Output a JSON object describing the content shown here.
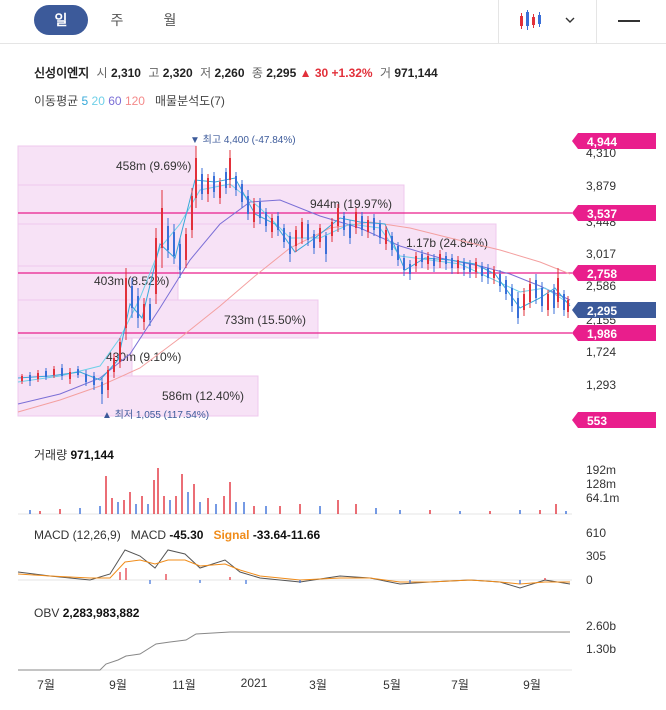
{
  "tabs": [
    "일",
    "주",
    "월"
  ],
  "active_tab": "일",
  "icons": {
    "chart_type": "candlestick-chart-icon",
    "dropdown": "chevron-down-icon",
    "menu": "menu-icon"
  },
  "colors": {
    "up": "#e2303a",
    "down": "#3a6fd8",
    "accent_tab": "#3c5a9a",
    "price_line": "#e91e8c",
    "current_price": "#3c5a9a",
    "ma5": "#36a9d9",
    "ma20": "#6fd0e8",
    "ma60": "#7b6fd6",
    "ma120": "#f4a0a0",
    "macd": "#555555",
    "signal": "#f08c1a"
  },
  "summary": {
    "name": "신성이엔지",
    "open_label": "시",
    "open": "2,310",
    "high_label": "고",
    "high": "2,320",
    "low_label": "저",
    "low": "2,260",
    "close_label": "종",
    "close": "2,295",
    "change_arrow": "▲",
    "change": "30",
    "change_pct": "+1.32%",
    "volume_label": "거",
    "volume": "971,144"
  },
  "indicators": {
    "ma_label": "이동평균",
    "ma5": "5",
    "ma20": "20",
    "ma60": "60",
    "ma120": "120",
    "volume_profile": "매물분석도(7)"
  },
  "main_chart": {
    "y_ticks": [
      "4,310",
      "3,879",
      "3,448",
      "3,017",
      "2,586",
      "2,155",
      "1,724",
      "1,293"
    ],
    "price_markers": [
      "4,944",
      "3,537",
      "2,758",
      "2,295",
      "1,986",
      "553"
    ],
    "max_label": "▼ 최고  4,400 (-47.84%)",
    "min_label": "▲ 최저  1,055 (117.54%)",
    "volume_profile_labels": [
      "458m (9.69%)",
      "944m (19.97%)",
      "1.17b (24.84%)",
      "403m (8.52%)",
      "733m (15.50%)",
      "430m (9.10%)",
      "586m (12.40%)"
    ]
  },
  "volume_panel": {
    "title": "거래량",
    "value": "971,144",
    "y_ticks": [
      "192m",
      "128m",
      "64.1m"
    ]
  },
  "macd_panel": {
    "title": "MACD (12,26,9)",
    "macd_label": "MACD",
    "macd": "-45.30",
    "signal_label": "Signal",
    "signal": "-33.64",
    "hist": "-11.66",
    "y_ticks": [
      "610",
      "305",
      "0"
    ]
  },
  "obv_panel": {
    "title": "OBV",
    "value": "2,283,983,882",
    "y_ticks": [
      "2.60b",
      "1.30b"
    ]
  },
  "x_axis": [
    "7월",
    "9월",
    "11월",
    "2021",
    "3월",
    "5월",
    "7월",
    "9월"
  ]
}
